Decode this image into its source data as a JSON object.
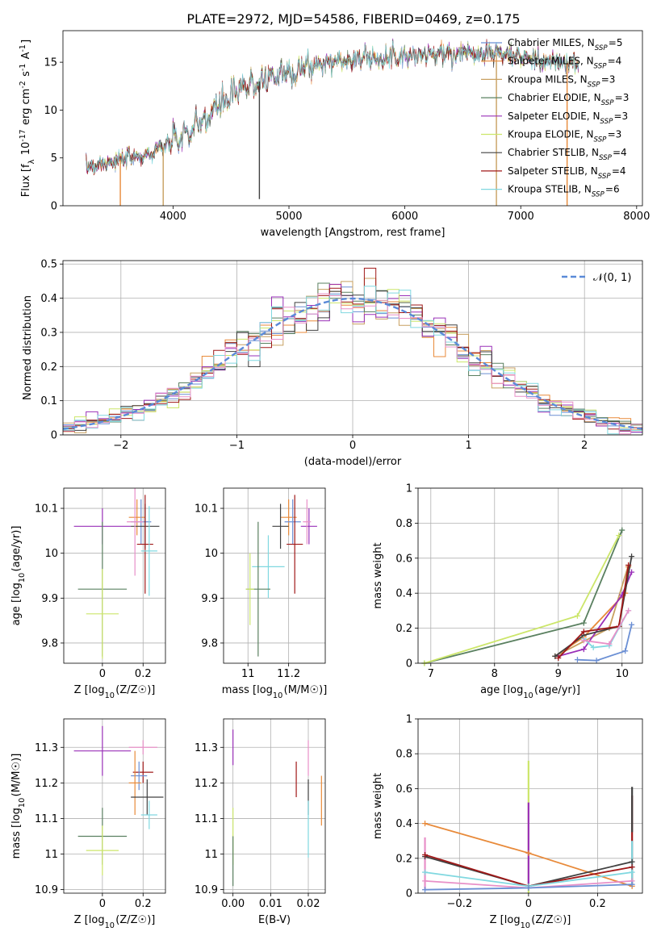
{
  "figure_title": "PLATE=2972, MJD=54586, FIBERID=0469, z=0.175",
  "colors": {
    "Chabrier MILES": "#6b8fd4",
    "Salpeter MILES": "#e88a3a",
    "Kroupa MILES": "#c8a060",
    "Chabrier ELODIE": "#5a8060",
    "Salpeter ELODIE": "#9a30b8",
    "Kroupa ELODIE": "#cce66a",
    "Chabrier STELIB": "#404040",
    "Salpeter STELIB": "#a01818",
    "Kroupa STELIB": "#80d8e0",
    "Kroupa STELIB alt": "#e890c8"
  },
  "chart_data": [
    {
      "id": "spectrum",
      "type": "line",
      "title": "",
      "xlabel": "wavelength [Angstrom, rest frame]",
      "ylabel": "Flux [f_λ 10^-17 erg cm^-2 s^-1 A^-1]",
      "xlim": [
        3050,
        8050
      ],
      "ylim": [
        0,
        18.3
      ],
      "xticks": [
        4000,
        5000,
        6000,
        7000,
        8000
      ],
      "yticks": [
        0,
        5,
        10,
        15
      ],
      "legend_placement": "right",
      "continuum": {
        "x": [
          3250,
          3400,
          3600,
          3800,
          4000,
          4200,
          4400,
          4600,
          4800,
          5000,
          5200,
          5400,
          5600,
          5800,
          6000,
          6200,
          6400,
          6600,
          6800,
          7000,
          7200,
          7400,
          7500
        ],
        "y": [
          4.0,
          4.5,
          4.9,
          5.4,
          6.6,
          8.2,
          10.5,
          12.2,
          13.3,
          14.0,
          14.6,
          15.1,
          15.4,
          15.6,
          15.7,
          15.8,
          15.9,
          16.0,
          16.0,
          15.5,
          15.1,
          14.9,
          14.8
        ]
      },
      "series": [
        {
          "name": "Chabrier MILES, N_SSP=5",
          "color": "#6b8fd4"
        },
        {
          "name": "Salpeter MILES, N_SSP=4",
          "color": "#e88a3a"
        },
        {
          "name": "Kroupa MILES, N_SSP=3",
          "color": "#c8a060"
        },
        {
          "name": "Chabrier ELODIE, N_SSP=3",
          "color": "#5a8060"
        },
        {
          "name": "Salpeter ELODIE, N_SSP=3",
          "color": "#9a30b8"
        },
        {
          "name": "Kroupa ELODIE, N_SSP=3",
          "color": "#cce66a"
        },
        {
          "name": "Chabrier STELIB, N_SSP=4",
          "color": "#404040"
        },
        {
          "name": "Salpeter STELIB, N_SSP=4",
          "color": "#a01818"
        },
        {
          "name": "Kroupa STELIB, N_SSP=6",
          "color": "#80d8e0"
        }
      ],
      "drops": [
        {
          "x": 3545,
          "y_low": 0,
          "color": "#e88a3a"
        },
        {
          "x": 3915,
          "y_low": 0,
          "color": "#c8a060"
        },
        {
          "x": 4745,
          "y_low": 0.7,
          "color": "#404040"
        },
        {
          "x": 6790,
          "y_low": 0,
          "color": "#c8a060"
        },
        {
          "x": 7400,
          "y_low": 0,
          "color": "#e88a3a"
        }
      ]
    },
    {
      "id": "residuals",
      "type": "histogram",
      "title": "",
      "xlabel": "(data-model)/error",
      "ylabel": "Normed distribution",
      "xlim": [
        -2.5,
        2.5
      ],
      "ylim": [
        0,
        0.51
      ],
      "xticks": [
        -2,
        -1,
        0,
        1,
        2
      ],
      "yticks": [
        0.0,
        0.1,
        0.2,
        0.3,
        0.4,
        0.5
      ],
      "grid": true,
      "bin_width": 0.1,
      "gaussian_label": "𝒩(0, 1)",
      "gaussian_color": "#5a8ad8",
      "legend_placement": "top-right"
    },
    {
      "id": "age-vs-Z",
      "type": "errorbar",
      "xlabel": "Z [log10(Z/Z☉)]",
      "ylabel": "age  [log10(age/yr)]",
      "xlim": [
        -0.19,
        0.31
      ],
      "ylim": [
        9.755,
        10.145
      ],
      "xticks": [
        0.0,
        0.2
      ],
      "yticks": [
        9.8,
        9.9,
        10.0,
        10.1
      ],
      "grid": true,
      "points": [
        {
          "x": 0.0,
          "y": 10.06,
          "xerr": 0.14,
          "yerr": 0.04,
          "color": "#9a30b8"
        },
        {
          "x": 0.17,
          "y": 10.08,
          "xerr": 0.04,
          "yerr": 0.04,
          "color": "#e88a3a"
        },
        {
          "x": 0.19,
          "y": 10.07,
          "xerr": 0.05,
          "yerr": 0.05,
          "color": "#6b8fd4"
        },
        {
          "x": 0.21,
          "y": 10.06,
          "xerr": 0.07,
          "yerr": 0.05,
          "color": "#404040"
        },
        {
          "x": 0.16,
          "y": 10.07,
          "xerr": 0.04,
          "yerr": 0.12,
          "color": "#e890c8"
        },
        {
          "x": 0.21,
          "y": 10.02,
          "xerr": 0.04,
          "yerr": 0.11,
          "color": "#a01818"
        },
        {
          "x": 0.23,
          "y": 10.005,
          "xerr": 0.04,
          "yerr": 0.1,
          "color": "#80d8e0"
        },
        {
          "x": 0.0,
          "y": 9.92,
          "xerr": 0.12,
          "yerr": 0.15,
          "color": "#5a8060"
        },
        {
          "x": 0.0,
          "y": 9.865,
          "xerr": 0.08,
          "yerr": 0.1,
          "color": "#cce66a"
        }
      ]
    },
    {
      "id": "age-vs-mass",
      "type": "errorbar",
      "xlabel": "mass [log10(M/M☉)]",
      "ylabel": "",
      "xlim": [
        10.88,
        11.38
      ],
      "ylim": [
        9.755,
        10.145
      ],
      "xticks": [
        11.0,
        11.2
      ],
      "yticks": [
        9.8,
        9.9,
        10.0,
        10.1
      ],
      "grid": true,
      "points": [
        {
          "x": 11.3,
          "y": 10.06,
          "xerr": 0.04,
          "yerr": 0.04,
          "color": "#9a30b8"
        },
        {
          "x": 11.2,
          "y": 10.08,
          "xerr": 0.04,
          "yerr": 0.04,
          "color": "#e88a3a"
        },
        {
          "x": 11.22,
          "y": 10.07,
          "xerr": 0.04,
          "yerr": 0.05,
          "color": "#6b8fd4"
        },
        {
          "x": 11.16,
          "y": 10.06,
          "xerr": 0.04,
          "yerr": 0.05,
          "color": "#404040"
        },
        {
          "x": 11.29,
          "y": 10.07,
          "xerr": 0.02,
          "yerr": 0.05,
          "color": "#e890c8"
        },
        {
          "x": 11.23,
          "y": 10.02,
          "xerr": 0.04,
          "yerr": 0.11,
          "color": "#a01818"
        },
        {
          "x": 11.1,
          "y": 9.97,
          "xerr": 0.08,
          "yerr": 0.07,
          "color": "#80d8e0"
        },
        {
          "x": 11.05,
          "y": 9.92,
          "xerr": 0.06,
          "yerr": 0.15,
          "color": "#5a8060"
        },
        {
          "x": 11.01,
          "y": 9.92,
          "xerr": 0.02,
          "yerr": 0.08,
          "color": "#cce66a"
        }
      ]
    },
    {
      "id": "massweight-vs-age",
      "type": "line",
      "xlabel": "age  [log10(age/yr)]",
      "ylabel": "mass weight",
      "xlim": [
        6.8,
        10.32
      ],
      "ylim": [
        0,
        1.0
      ],
      "xticks": [
        7,
        8,
        9,
        10
      ],
      "yticks": [
        0.0,
        0.2,
        0.4,
        0.6,
        0.8,
        1.0
      ],
      "grid": true,
      "series": [
        {
          "color": "#6b8fd4",
          "x": [
            9.3,
            9.6,
            10.05,
            10.15
          ],
          "y": [
            0.02,
            0.015,
            0.07,
            0.22
          ]
        },
        {
          "color": "#e88a3a",
          "x": [
            8.95,
            9.4,
            10.05,
            10.1
          ],
          "y": [
            0.04,
            0.15,
            0.4,
            0.55
          ]
        },
        {
          "color": "#c8a060",
          "x": [
            8.95,
            9.8,
            10.1
          ],
          "y": [
            0.04,
            0.2,
            0.56
          ]
        },
        {
          "color": "#5a8060",
          "x": [
            6.9,
            9.4,
            10.0
          ],
          "y": [
            0.0,
            0.23,
            0.76
          ]
        },
        {
          "color": "#9a30b8",
          "x": [
            9.0,
            9.4,
            10.0,
            10.15
          ],
          "y": [
            0.04,
            0.08,
            0.39,
            0.52
          ]
        },
        {
          "color": "#cce66a",
          "x": [
            6.9,
            9.3,
            9.95
          ],
          "y": [
            0.0,
            0.27,
            0.73
          ]
        },
        {
          "color": "#404040",
          "x": [
            8.95,
            9.4,
            9.95,
            10.15
          ],
          "y": [
            0.04,
            0.16,
            0.21,
            0.61
          ]
        },
        {
          "color": "#a01818",
          "x": [
            9.0,
            9.4,
            9.95,
            10.1
          ],
          "y": [
            0.03,
            0.18,
            0.21,
            0.56
          ]
        },
        {
          "color": "#80d8e0",
          "x": [
            9.4,
            9.55,
            9.8,
            10.1
          ],
          "y": [
            0.14,
            0.09,
            0.1,
            0.3
          ]
        },
        {
          "color": "#e890c8",
          "x": [
            9.4,
            9.8,
            10.1
          ],
          "y": [
            0.13,
            0.11,
            0.3
          ]
        }
      ]
    },
    {
      "id": "mass-vs-Z",
      "type": "errorbar",
      "xlabel": "Z [log10(Z/Z☉)]",
      "ylabel": "mass [log10(M/M☉)]",
      "xlim": [
        -0.19,
        0.31
      ],
      "ylim": [
        10.89,
        11.38
      ],
      "xticks": [
        0.0,
        0.2
      ],
      "yticks": [
        10.9,
        11.0,
        11.1,
        11.2,
        11.3
      ],
      "grid": true,
      "points": [
        {
          "x": 0.0,
          "y": 11.29,
          "xerr": 0.14,
          "yerr": 0.07,
          "color": "#9a30b8"
        },
        {
          "x": 0.2,
          "y": 11.3,
          "xerr": 0.07,
          "yerr": 0.02,
          "color": "#e890c8"
        },
        {
          "x": 0.2,
          "y": 11.23,
          "xerr": 0.05,
          "yerr": 0.03,
          "color": "#a01818"
        },
        {
          "x": 0.18,
          "y": 11.22,
          "xerr": 0.04,
          "yerr": 0.04,
          "color": "#6b8fd4"
        },
        {
          "x": 0.16,
          "y": 11.2,
          "xerr": 0.03,
          "yerr": 0.09,
          "color": "#e88a3a"
        },
        {
          "x": 0.22,
          "y": 11.16,
          "xerr": 0.08,
          "yerr": 0.05,
          "color": "#404040"
        },
        {
          "x": 0.23,
          "y": 11.11,
          "xerr": 0.04,
          "yerr": 0.04,
          "color": "#80d8e0"
        },
        {
          "x": 0.0,
          "y": 11.05,
          "xerr": 0.12,
          "yerr": 0.08,
          "color": "#5a8060"
        },
        {
          "x": 0.0,
          "y": 11.01,
          "xerr": 0.08,
          "yerr": 0.07,
          "color": "#cce66a"
        }
      ]
    },
    {
      "id": "mass-vs-EBV",
      "type": "errorbar",
      "xlabel": "E(B-V)",
      "ylabel": "",
      "xlim": [
        -0.0025,
        0.0245
      ],
      "ylim": [
        10.89,
        11.38
      ],
      "xticks": [
        0.0,
        0.01,
        0.02
      ],
      "xticklabels": [
        "0.00",
        "0.01",
        "0.02"
      ],
      "yticks": [
        10.9,
        11.0,
        11.1,
        11.2,
        11.3
      ],
      "grid": true,
      "points": [
        {
          "x": 0.0,
          "y": 11.3,
          "yerr": 0.05,
          "color": "#9a30b8"
        },
        {
          "x": 0.0,
          "y": 11.05,
          "yerr": 0.08,
          "color": "#cce66a"
        },
        {
          "x": 0.0,
          "y": 10.98,
          "yerr": 0.07,
          "color": "#5a8060"
        },
        {
          "x": 0.0168,
          "y": 11.21,
          "yerr": 0.05,
          "color": "#a01818"
        },
        {
          "x": 0.02,
          "y": 11.27,
          "yerr": 0.05,
          "color": "#e890c8"
        },
        {
          "x": 0.02,
          "y": 11.16,
          "yerr": 0.05,
          "color": "#404040"
        },
        {
          "x": 0.02,
          "y": 11.07,
          "yerr": 0.08,
          "color": "#80d8e0"
        },
        {
          "x": 0.0235,
          "y": 11.15,
          "yerr": 0.07,
          "color": "#e88a3a"
        }
      ]
    },
    {
      "id": "massweight-vs-Z",
      "type": "line",
      "xlabel": "Z [log10(Z/Z☉)]",
      "ylabel": "mass weight",
      "xlim": [
        -0.32,
        0.33
      ],
      "ylim": [
        0,
        1.0
      ],
      "xticks": [
        -0.2,
        0.0,
        0.2
      ],
      "yticks": [
        0.0,
        0.2,
        0.4,
        0.6,
        0.8,
        1.0
      ],
      "grid": true,
      "series": [
        {
          "color": "#e88a3a",
          "x": [
            -0.3,
            0.0,
            0.3
          ],
          "y": [
            0.4,
            0.23,
            0.04
          ]
        },
        {
          "color": "#404040",
          "x": [
            -0.3,
            0.0,
            0.3
          ],
          "y": [
            0.21,
            0.04,
            0.18
          ]
        },
        {
          "color": "#a01818",
          "x": [
            -0.3,
            0.0,
            0.3
          ],
          "y": [
            0.22,
            0.04,
            0.15
          ]
        },
        {
          "color": "#80d8e0",
          "x": [
            -0.3,
            0.0,
            0.3
          ],
          "y": [
            0.12,
            0.04,
            0.12
          ]
        },
        {
          "color": "#e890c8",
          "x": [
            -0.3,
            0.0,
            0.3
          ],
          "y": [
            0.07,
            0.03,
            0.07
          ]
        },
        {
          "color": "#6b8fd4",
          "x": [
            -0.3,
            0.0,
            0.3
          ],
          "y": [
            0.02,
            0.03,
            0.05
          ]
        }
      ],
      "vertical_stacks": [
        {
          "x": -0.3,
          "color": "#e890c8",
          "y0": 0.02,
          "y1": 0.32
        },
        {
          "x": 0.0,
          "color": "#cce66a",
          "y0": 0.0,
          "y1": 0.76
        },
        {
          "x": 0.0,
          "color": "#9a30b8",
          "y0": 0.05,
          "y1": 0.52
        },
        {
          "x": 0.3,
          "color": "#a01818",
          "y0": 0.05,
          "y1": 0.56
        },
        {
          "x": 0.3,
          "color": "#404040",
          "y0": 0.35,
          "y1": 0.61
        },
        {
          "x": 0.3,
          "color": "#80d8e0",
          "y0": 0.05,
          "y1": 0.3
        }
      ]
    }
  ]
}
